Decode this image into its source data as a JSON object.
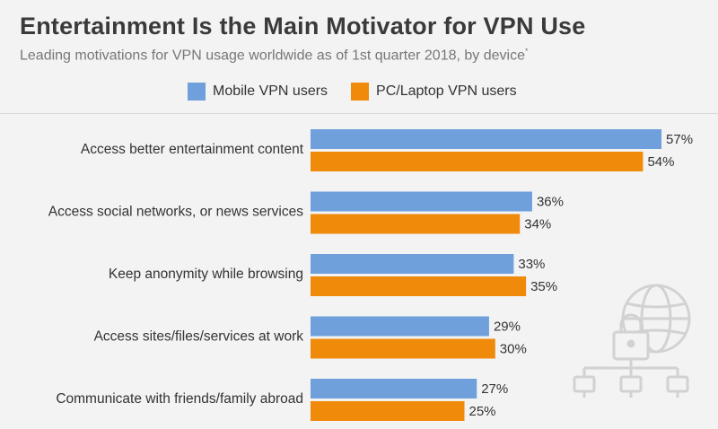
{
  "chart_data": {
    "type": "bar",
    "orientation": "horizontal",
    "title": "Entertainment Is the Main Motivator for VPN Use",
    "subtitle": "Leading motivations for VPN usage worldwide as of 1st quarter 2018, by device",
    "subtitle_mark": "*",
    "categories": [
      "Access better entertainment content",
      "Access social networks, or news services",
      "Keep anonymity while browsing",
      "Access sites/files/services at work",
      "Communicate with friends/family abroad"
    ],
    "series": [
      {
        "name": "Mobile VPN users",
        "color": "#6fa0dc",
        "values": [
          57,
          36,
          33,
          29,
          27
        ]
      },
      {
        "name": "PC/Laptop VPN users",
        "color": "#f08a0b",
        "values": [
          54,
          34,
          35,
          30,
          25
        ]
      }
    ],
    "value_suffix": "%",
    "xlim": [
      0,
      60
    ],
    "grid": false,
    "legend_position": "top",
    "decorative_icon": "globe-lock-network-icon"
  }
}
